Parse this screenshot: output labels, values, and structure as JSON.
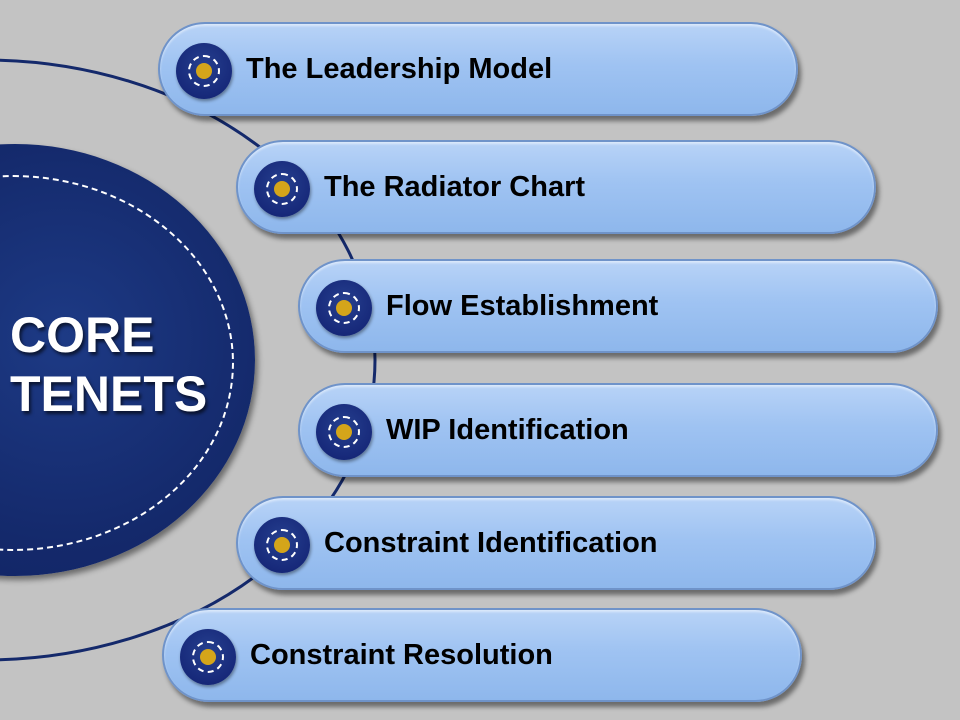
{
  "core": {
    "line1": "CORE",
    "line2": "TENETS"
  },
  "tenets": [
    {
      "label": "The Leadership Model"
    },
    {
      "label": "The Radiator Chart"
    },
    {
      "label": "Flow Establishment"
    },
    {
      "label": "WIP Identification"
    },
    {
      "label": "Constraint Identification"
    },
    {
      "label": "Constraint Resolution"
    }
  ],
  "colors": {
    "background": "#c3c3c3",
    "core_circle": "#14296b",
    "pill_fill": "#9fc3f2",
    "icon_dot": "#d4a51a",
    "arc_line": "#14296b"
  }
}
